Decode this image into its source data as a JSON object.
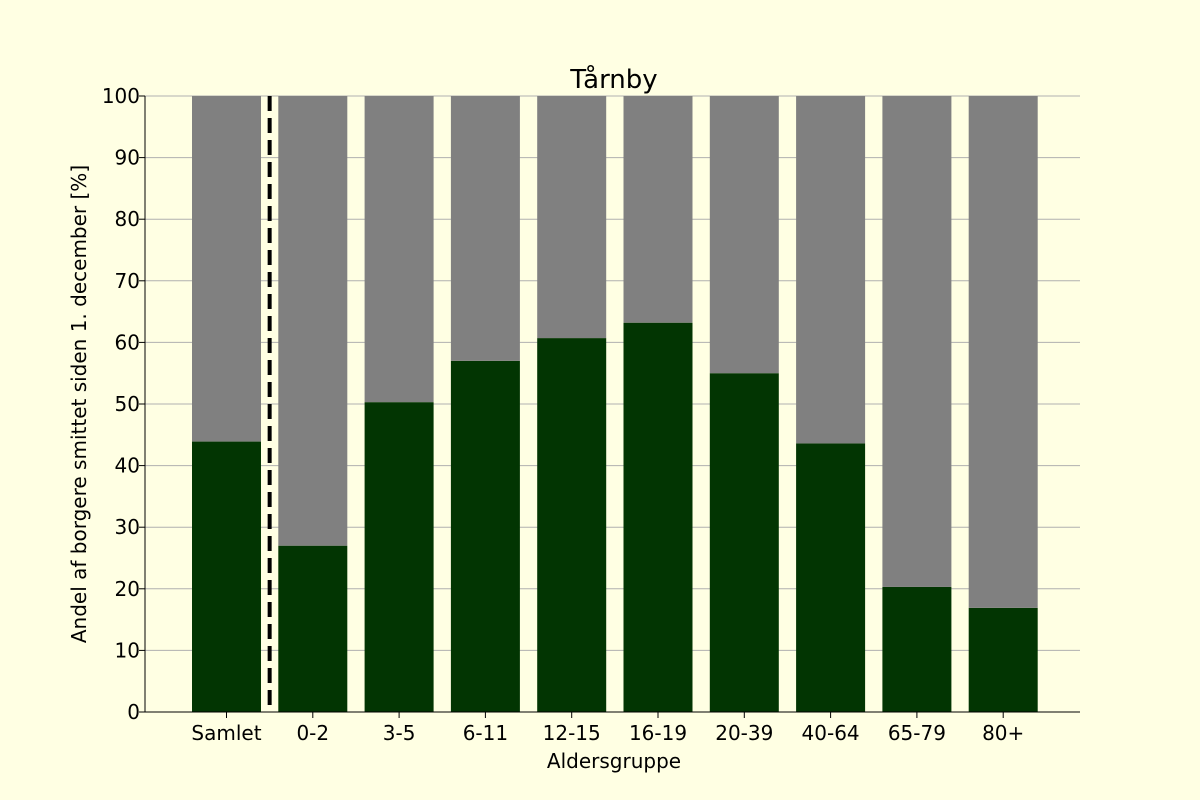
{
  "chart_data": {
    "type": "bar",
    "stacked": true,
    "title": "Tårnby",
    "xlabel": "Aldersgruppe",
    "ylabel": "Andel af borgere smittet siden 1. december [%]",
    "ylim": [
      0,
      100
    ],
    "yticks": [
      0,
      10,
      20,
      30,
      40,
      50,
      60,
      70,
      80,
      90,
      100
    ],
    "grid": "horizontal",
    "categories": [
      "Samlet",
      "0-2",
      "3-5",
      "6-11",
      "12-15",
      "16-19",
      "20-39",
      "40-64",
      "65-79",
      "80+"
    ],
    "series": [
      {
        "values": [
          43.9,
          27.0,
          50.3,
          57.0,
          60.7,
          63.2,
          55.0,
          43.6,
          20.3,
          16.9
        ],
        "color": "#023502"
      },
      {
        "values": [
          56.1,
          73.0,
          49.7,
          43.0,
          39.3,
          36.8,
          45.0,
          56.4,
          79.7,
          83.1
        ],
        "color": "#808080"
      }
    ],
    "separator_after_category": "Samlet",
    "separator_style": "dashed"
  },
  "colors": {
    "background": "#ffffe3",
    "grid": "#b0b0b0",
    "separator": "#000000"
  }
}
